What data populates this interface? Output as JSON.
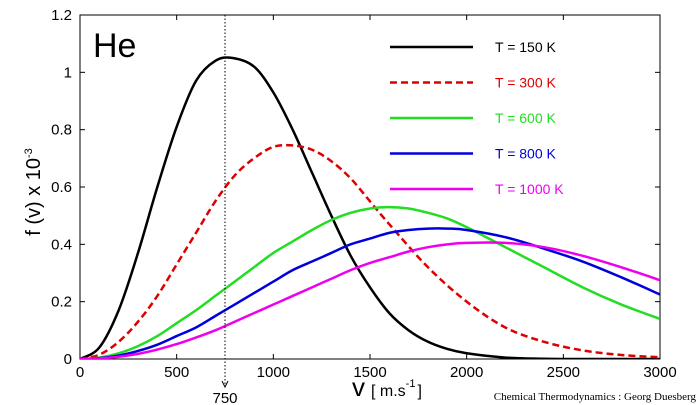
{
  "chart_data": {
    "type": "line",
    "annotation_species": "He",
    "xlabel_main": "v",
    "xlabel_unit_prefix": "[ m.s",
    "xlabel_unit_exp": "-1",
    "xlabel_unit_suffix": "]",
    "ylabel_main": "f (v) x 10",
    "ylabel_exp": "-3",
    "xlim": [
      0,
      3000
    ],
    "ylim": [
      0,
      1.2
    ],
    "xticks": [
      "0",
      "500",
      "1000",
      "1500",
      "2000",
      "2500",
      "3000"
    ],
    "yticks": [
      "0",
      "0.2",
      "0.4",
      "0.6",
      "0.8",
      "1",
      "1.2"
    ],
    "legend_position": "top-right",
    "marker": {
      "x": 750,
      "label": "750"
    },
    "credit": "Chemical Thermodynamics : Georg Duesberg",
    "series": [
      {
        "name": "T = 150 K",
        "color": "#000000",
        "dash": "solid",
        "x": [
          0,
          100,
          200,
          300,
          400,
          500,
          600,
          700,
          790,
          900,
          1000,
          1100,
          1200,
          1300,
          1400,
          1500,
          1600,
          1700,
          1800,
          1900,
          2000,
          2200,
          2400,
          2600,
          2800,
          3000
        ],
        "y": [
          0,
          0.04,
          0.17,
          0.37,
          0.6,
          0.81,
          0.97,
          1.04,
          1.05,
          1.02,
          0.93,
          0.8,
          0.65,
          0.5,
          0.36,
          0.25,
          0.16,
          0.1,
          0.06,
          0.035,
          0.02,
          0.005,
          0.001,
          0,
          0,
          0
        ]
      },
      {
        "name": "T = 300 K",
        "color": "#dd0000",
        "dash": "dashed",
        "x": [
          0,
          100,
          200,
          300,
          400,
          500,
          600,
          700,
          800,
          900,
          1000,
          1100,
          1200,
          1300,
          1400,
          1500,
          1600,
          1800,
          2000,
          2200,
          2400,
          2600,
          2800,
          3000
        ],
        "y": [
          0,
          0.015,
          0.06,
          0.13,
          0.22,
          0.33,
          0.44,
          0.55,
          0.64,
          0.7,
          0.74,
          0.745,
          0.73,
          0.69,
          0.63,
          0.55,
          0.47,
          0.32,
          0.2,
          0.11,
          0.06,
          0.03,
          0.014,
          0.006
        ]
      },
      {
        "name": "T = 600 K",
        "color": "#22dd22",
        "dash": "solid",
        "x": [
          0,
          100,
          200,
          300,
          400,
          500,
          600,
          700,
          800,
          900,
          1000,
          1100,
          1200,
          1300,
          1400,
          1500,
          1600,
          1700,
          1800,
          1900,
          2000,
          2200,
          2400,
          2600,
          2800,
          3000
        ],
        "y": [
          0,
          0.005,
          0.02,
          0.045,
          0.08,
          0.125,
          0.17,
          0.22,
          0.27,
          0.32,
          0.37,
          0.41,
          0.45,
          0.485,
          0.51,
          0.525,
          0.53,
          0.525,
          0.51,
          0.49,
          0.46,
          0.39,
          0.32,
          0.25,
          0.19,
          0.14
        ]
      },
      {
        "name": "T = 800 K",
        "color": "#0000dd",
        "dash": "solid",
        "x": [
          0,
          100,
          200,
          300,
          400,
          500,
          600,
          700,
          800,
          900,
          1000,
          1100,
          1200,
          1300,
          1400,
          1500,
          1600,
          1700,
          1800,
          1900,
          2000,
          2200,
          2400,
          2600,
          2800,
          3000
        ],
        "y": [
          0,
          0.003,
          0.012,
          0.028,
          0.05,
          0.08,
          0.11,
          0.15,
          0.19,
          0.23,
          0.27,
          0.31,
          0.34,
          0.37,
          0.4,
          0.42,
          0.44,
          0.45,
          0.455,
          0.455,
          0.45,
          0.425,
          0.385,
          0.34,
          0.285,
          0.225
        ]
      },
      {
        "name": "T = 1000 K",
        "color": "#ee00ee",
        "dash": "solid",
        "x": [
          0,
          100,
          200,
          300,
          400,
          500,
          600,
          700,
          800,
          900,
          1000,
          1100,
          1200,
          1300,
          1400,
          1500,
          1600,
          1700,
          1800,
          1900,
          2000,
          2200,
          2400,
          2600,
          2800,
          3000
        ],
        "y": [
          0,
          0.002,
          0.008,
          0.018,
          0.033,
          0.052,
          0.075,
          0.1,
          0.13,
          0.16,
          0.19,
          0.22,
          0.25,
          0.28,
          0.31,
          0.335,
          0.355,
          0.375,
          0.39,
          0.4,
          0.405,
          0.405,
          0.39,
          0.36,
          0.32,
          0.275
        ]
      }
    ]
  }
}
